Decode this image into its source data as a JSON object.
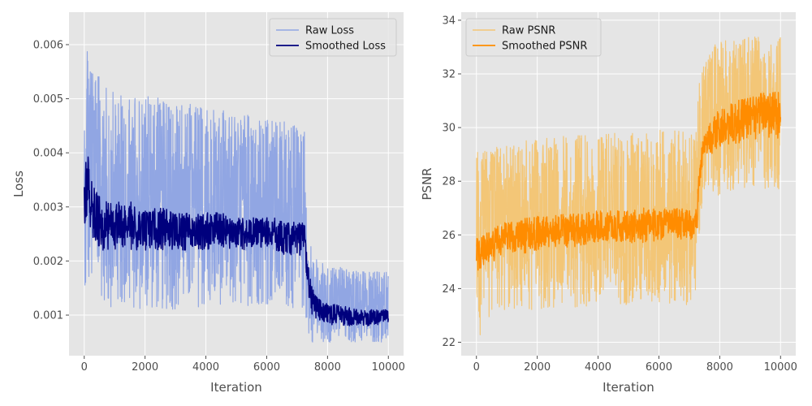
{
  "chart_data": [
    {
      "type": "line",
      "xlabel": "Iteration",
      "ylabel": "Loss",
      "xlim": [
        -500,
        10500
      ],
      "ylim": [
        0.00025,
        0.0066
      ],
      "xticks": [
        0,
        2000,
        4000,
        6000,
        8000,
        10000
      ],
      "yticks": [
        0.001,
        0.002,
        0.003,
        0.004,
        0.005,
        0.006
      ],
      "ytick_labels": [
        "0.001",
        "0.002",
        "0.003",
        "0.004",
        "0.005",
        "0.006"
      ],
      "grid": true,
      "legend_position": "top-right",
      "series": [
        {
          "name": "Raw Loss",
          "color": "#91a6e3",
          "x": [
            0,
            100,
            200,
            300,
            500,
            750,
            1000,
            1500,
            2000,
            2500,
            3000,
            3500,
            4000,
            4500,
            5000,
            5500,
            6000,
            6500,
            7000,
            7250,
            7300,
            7400,
            7500,
            7700,
            8000,
            8500,
            9000,
            9500,
            10000
          ],
          "upper": [
            0.005,
            0.0063,
            0.006,
            0.0055,
            0.0054,
            0.0052,
            0.0051,
            0.005,
            0.0051,
            0.005,
            0.0049,
            0.0049,
            0.0048,
            0.0048,
            0.0047,
            0.0047,
            0.0046,
            0.0046,
            0.0045,
            0.0045,
            0.003,
            0.0024,
            0.0022,
            0.002,
            0.0019,
            0.0019,
            0.0018,
            0.0018,
            0.0018
          ],
          "lower": [
            0.001,
            0.0015,
            0.0015,
            0.0014,
            0.0014,
            0.0012,
            0.0011,
            0.0011,
            0.0011,
            0.0011,
            0.0011,
            0.0012,
            0.0011,
            0.0012,
            0.0011,
            0.0012,
            0.0012,
            0.0012,
            0.0011,
            0.0011,
            0.0008,
            0.0006,
            0.0005,
            0.0005,
            0.0005,
            0.0005,
            0.0005,
            0.0005,
            0.0005
          ]
        },
        {
          "name": "Smoothed Loss",
          "color": "#00007d",
          "x": [
            0,
            100,
            200,
            300,
            500,
            750,
            1000,
            1500,
            2000,
            2500,
            3000,
            3500,
            4000,
            4500,
            5000,
            5500,
            6000,
            6500,
            7000,
            7250,
            7300,
            7400,
            7500,
            7700,
            8000,
            8500,
            9000,
            9500,
            10000
          ],
          "upper": [
            0.0035,
            0.0041,
            0.0037,
            0.0034,
            0.0033,
            0.0032,
            0.0031,
            0.0031,
            0.003,
            0.003,
            0.0029,
            0.0029,
            0.0029,
            0.0029,
            0.0028,
            0.0028,
            0.0028,
            0.0028,
            0.0027,
            0.0027,
            0.0022,
            0.0018,
            0.0015,
            0.0013,
            0.0012,
            0.0012,
            0.0011,
            0.0011,
            0.0011
          ],
          "lower": [
            0.0026,
            0.0027,
            0.0025,
            0.0023,
            0.0022,
            0.0022,
            0.0022,
            0.0022,
            0.0022,
            0.0022,
            0.0022,
            0.0022,
            0.0022,
            0.0022,
            0.0022,
            0.0022,
            0.0022,
            0.0021,
            0.0021,
            0.0021,
            0.0016,
            0.0012,
            0.001,
            0.0009,
            0.0008,
            0.0008,
            0.0008,
            0.0008,
            0.0008
          ]
        }
      ]
    },
    {
      "type": "line",
      "xlabel": "Iteration",
      "ylabel": "PSNR",
      "xlim": [
        -500,
        10500
      ],
      "ylim": [
        21.5,
        34.3
      ],
      "xticks": [
        0,
        2000,
        4000,
        6000,
        8000,
        10000
      ],
      "yticks": [
        22,
        24,
        26,
        28,
        30,
        32,
        34
      ],
      "ytick_labels": [
        "22",
        "24",
        "26",
        "28",
        "30",
        "32",
        "34"
      ],
      "grid": true,
      "legend_position": "top-left",
      "series": [
        {
          "name": "Raw PSNR",
          "color": "#f3c677",
          "x": [
            0,
            100,
            200,
            300,
            500,
            750,
            1000,
            1500,
            2000,
            2500,
            3000,
            3500,
            4000,
            4500,
            5000,
            5500,
            6000,
            6500,
            7000,
            7250,
            7300,
            7400,
            7500,
            7700,
            8000,
            8500,
            9000,
            9500,
            10000
          ],
          "upper": [
            29.8,
            28.8,
            29.0,
            29.2,
            29.3,
            29.4,
            29.5,
            29.5,
            29.6,
            29.6,
            29.7,
            29.7,
            29.7,
            29.8,
            29.8,
            29.8,
            29.9,
            29.9,
            29.9,
            29.9,
            31.5,
            32.2,
            32.7,
            33.0,
            33.2,
            33.3,
            33.4,
            33.4,
            33.4
          ],
          "lower": [
            23.0,
            22.0,
            22.5,
            22.8,
            23.0,
            23.1,
            23.2,
            23.2,
            23.2,
            23.3,
            23.3,
            23.3,
            23.3,
            23.4,
            23.4,
            23.4,
            23.4,
            23.4,
            23.4,
            23.4,
            25.5,
            26.8,
            27.2,
            27.4,
            27.5,
            27.6,
            27.7,
            27.7,
            27.7
          ]
        },
        {
          "name": "Smoothed PSNR",
          "color": "#ff8c00",
          "x": [
            0,
            100,
            200,
            300,
            500,
            750,
            1000,
            1500,
            2000,
            2500,
            3000,
            3500,
            4000,
            4500,
            5000,
            5500,
            6000,
            6500,
            7000,
            7250,
            7300,
            7400,
            7500,
            7700,
            8000,
            8500,
            9000,
            9500,
            10000
          ],
          "upper": [
            26.0,
            25.8,
            26.0,
            26.1,
            26.3,
            26.4,
            26.5,
            26.6,
            26.7,
            26.7,
            26.8,
            26.8,
            26.9,
            26.9,
            26.9,
            27.0,
            27.0,
            27.0,
            27.0,
            27.0,
            28.2,
            29.2,
            29.8,
            30.3,
            30.7,
            31.0,
            31.2,
            31.3,
            31.4
          ],
          "lower": [
            24.8,
            24.1,
            24.8,
            24.9,
            25.0,
            25.1,
            25.2,
            25.3,
            25.4,
            25.5,
            25.5,
            25.6,
            25.6,
            25.7,
            25.7,
            25.7,
            25.8,
            25.8,
            25.8,
            25.8,
            27.0,
            28.4,
            28.8,
            29.0,
            29.2,
            29.4,
            29.5,
            29.6,
            29.6
          ]
        }
      ]
    }
  ]
}
